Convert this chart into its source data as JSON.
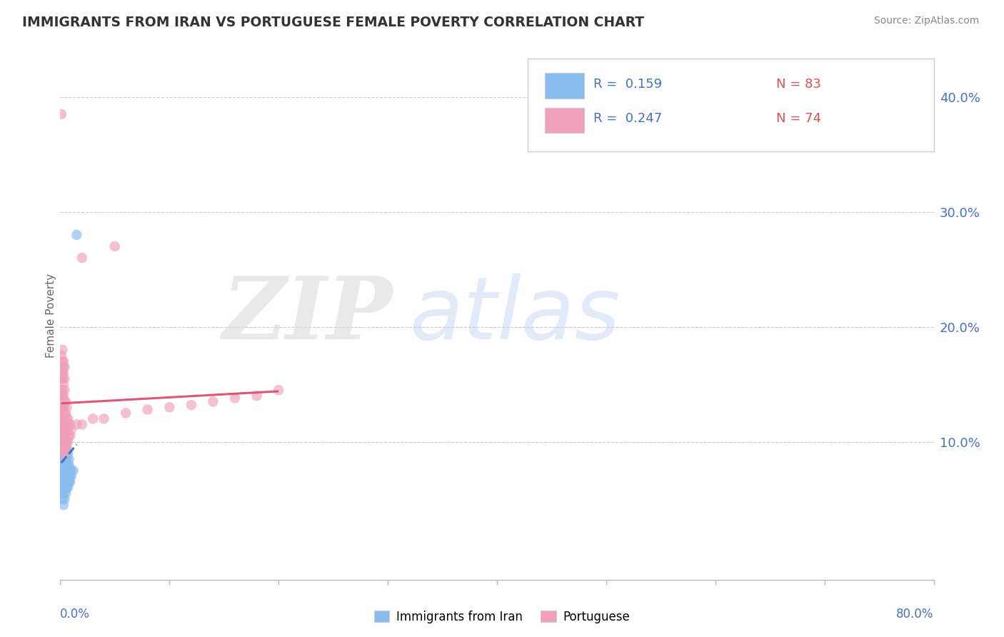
{
  "title": "IMMIGRANTS FROM IRAN VS PORTUGUESE FEMALE POVERTY CORRELATION CHART",
  "source": "Source: ZipAtlas.com",
  "ylabel": "Female Poverty",
  "xmin": 0.0,
  "xmax": 0.8,
  "ymin": -0.02,
  "ymax": 0.44,
  "ytick_vals": [
    0.1,
    0.2,
    0.3,
    0.4
  ],
  "ytick_labels": [
    "10.0%",
    "20.0%",
    "30.0%",
    "40.0%"
  ],
  "series1_color": "#88bbee",
  "series2_color": "#f0a0b8",
  "trendline1_color": "#4472c4",
  "trendline2_color": "#e05575",
  "watermark_zip": "ZIP",
  "watermark_atlas": "atlas",
  "legend_r1": "R =  0.159",
  "legend_n1": "N = 83",
  "legend_r2": "R =  0.247",
  "legend_n2": "N = 74",
  "iran_points": [
    [
      0.001,
      0.055
    ],
    [
      0.001,
      0.065
    ],
    [
      0.001,
      0.07
    ],
    [
      0.001,
      0.075
    ],
    [
      0.001,
      0.08
    ],
    [
      0.001,
      0.085
    ],
    [
      0.001,
      0.09
    ],
    [
      0.001,
      0.095
    ],
    [
      0.001,
      0.1
    ],
    [
      0.001,
      0.105
    ],
    [
      0.002,
      0.05
    ],
    [
      0.002,
      0.06
    ],
    [
      0.002,
      0.065
    ],
    [
      0.002,
      0.07
    ],
    [
      0.002,
      0.075
    ],
    [
      0.002,
      0.08
    ],
    [
      0.002,
      0.085
    ],
    [
      0.002,
      0.09
    ],
    [
      0.002,
      0.095
    ],
    [
      0.002,
      0.1
    ],
    [
      0.002,
      0.11
    ],
    [
      0.002,
      0.115
    ],
    [
      0.002,
      0.12
    ],
    [
      0.002,
      0.13
    ],
    [
      0.003,
      0.045
    ],
    [
      0.003,
      0.055
    ],
    [
      0.003,
      0.06
    ],
    [
      0.003,
      0.065
    ],
    [
      0.003,
      0.07
    ],
    [
      0.003,
      0.075
    ],
    [
      0.003,
      0.08
    ],
    [
      0.003,
      0.085
    ],
    [
      0.003,
      0.09
    ],
    [
      0.003,
      0.095
    ],
    [
      0.003,
      0.105
    ],
    [
      0.003,
      0.11
    ],
    [
      0.003,
      0.115
    ],
    [
      0.003,
      0.12
    ],
    [
      0.004,
      0.05
    ],
    [
      0.004,
      0.06
    ],
    [
      0.004,
      0.065
    ],
    [
      0.004,
      0.07
    ],
    [
      0.004,
      0.08
    ],
    [
      0.004,
      0.085
    ],
    [
      0.004,
      0.09
    ],
    [
      0.004,
      0.095
    ],
    [
      0.004,
      0.1
    ],
    [
      0.004,
      0.11
    ],
    [
      0.005,
      0.055
    ],
    [
      0.005,
      0.06
    ],
    [
      0.005,
      0.065
    ],
    [
      0.005,
      0.07
    ],
    [
      0.005,
      0.08
    ],
    [
      0.005,
      0.085
    ],
    [
      0.005,
      0.09
    ],
    [
      0.005,
      0.1
    ],
    [
      0.006,
      0.06
    ],
    [
      0.006,
      0.065
    ],
    [
      0.006,
      0.07
    ],
    [
      0.006,
      0.075
    ],
    [
      0.006,
      0.085
    ],
    [
      0.006,
      0.09
    ],
    [
      0.006,
      0.095
    ],
    [
      0.007,
      0.06
    ],
    [
      0.007,
      0.065
    ],
    [
      0.007,
      0.07
    ],
    [
      0.007,
      0.075
    ],
    [
      0.007,
      0.08
    ],
    [
      0.007,
      0.09
    ],
    [
      0.008,
      0.065
    ],
    [
      0.008,
      0.07
    ],
    [
      0.008,
      0.08
    ],
    [
      0.008,
      0.085
    ],
    [
      0.009,
      0.065
    ],
    [
      0.009,
      0.07
    ],
    [
      0.009,
      0.075
    ],
    [
      0.01,
      0.07
    ],
    [
      0.01,
      0.075
    ],
    [
      0.012,
      0.075
    ],
    [
      0.015,
      0.28
    ],
    [
      0.001,
      0.14
    ],
    [
      0.002,
      0.155
    ],
    [
      0.003,
      0.165
    ]
  ],
  "portuguese_points": [
    [
      0.001,
      0.095
    ],
    [
      0.001,
      0.105
    ],
    [
      0.001,
      0.115
    ],
    [
      0.001,
      0.12
    ],
    [
      0.001,
      0.13
    ],
    [
      0.001,
      0.135
    ],
    [
      0.001,
      0.14
    ],
    [
      0.001,
      0.145
    ],
    [
      0.001,
      0.155
    ],
    [
      0.001,
      0.16
    ],
    [
      0.001,
      0.165
    ],
    [
      0.001,
      0.175
    ],
    [
      0.002,
      0.09
    ],
    [
      0.002,
      0.1
    ],
    [
      0.002,
      0.11
    ],
    [
      0.002,
      0.12
    ],
    [
      0.002,
      0.125
    ],
    [
      0.002,
      0.13
    ],
    [
      0.002,
      0.14
    ],
    [
      0.002,
      0.145
    ],
    [
      0.002,
      0.155
    ],
    [
      0.002,
      0.16
    ],
    [
      0.002,
      0.17
    ],
    [
      0.002,
      0.18
    ],
    [
      0.003,
      0.09
    ],
    [
      0.003,
      0.1
    ],
    [
      0.003,
      0.11
    ],
    [
      0.003,
      0.12
    ],
    [
      0.003,
      0.13
    ],
    [
      0.003,
      0.14
    ],
    [
      0.003,
      0.15
    ],
    [
      0.003,
      0.16
    ],
    [
      0.003,
      0.17
    ],
    [
      0.004,
      0.095
    ],
    [
      0.004,
      0.105
    ],
    [
      0.004,
      0.115
    ],
    [
      0.004,
      0.125
    ],
    [
      0.004,
      0.135
    ],
    [
      0.004,
      0.145
    ],
    [
      0.004,
      0.155
    ],
    [
      0.004,
      0.165
    ],
    [
      0.005,
      0.095
    ],
    [
      0.005,
      0.105
    ],
    [
      0.005,
      0.115
    ],
    [
      0.005,
      0.125
    ],
    [
      0.005,
      0.135
    ],
    [
      0.006,
      0.1
    ],
    [
      0.006,
      0.11
    ],
    [
      0.006,
      0.12
    ],
    [
      0.006,
      0.13
    ],
    [
      0.007,
      0.1
    ],
    [
      0.007,
      0.11
    ],
    [
      0.007,
      0.12
    ],
    [
      0.008,
      0.105
    ],
    [
      0.008,
      0.115
    ],
    [
      0.009,
      0.105
    ],
    [
      0.009,
      0.115
    ],
    [
      0.01,
      0.11
    ],
    [
      0.015,
      0.115
    ],
    [
      0.02,
      0.115
    ],
    [
      0.03,
      0.12
    ],
    [
      0.04,
      0.12
    ],
    [
      0.06,
      0.125
    ],
    [
      0.08,
      0.128
    ],
    [
      0.1,
      0.13
    ],
    [
      0.12,
      0.132
    ],
    [
      0.14,
      0.135
    ],
    [
      0.16,
      0.138
    ],
    [
      0.18,
      0.14
    ],
    [
      0.2,
      0.145
    ],
    [
      0.05,
      0.27
    ],
    [
      0.001,
      0.385
    ],
    [
      0.02,
      0.26
    ],
    [
      0.005,
      0.095
    ]
  ]
}
